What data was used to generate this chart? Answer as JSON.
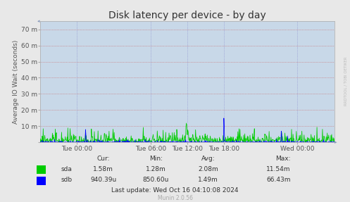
{
  "title": "Disk latency per device - by day",
  "ylabel": "Average IO Wait (seconds)",
  "background_color": "#e8e8e8",
  "plot_bg_color": "#c8d8e8",
  "x_tick_labels": [
    "Tue 00:00",
    "Tue 06:00",
    "Tue 12:00",
    "Tue 18:00",
    "Wed 00:00"
  ],
  "x_tick_positions": [
    0.125,
    0.375,
    0.5,
    0.625,
    0.875
  ],
  "y_ticks": [
    0,
    10,
    20,
    30,
    40,
    50,
    60,
    70
  ],
  "y_tick_labels": [
    "",
    "10 m",
    "20 m",
    "30 m",
    "40 m",
    "50 m",
    "60 m",
    "70 m"
  ],
  "ylim": [
    0,
    75
  ],
  "n_points": 800,
  "sda_color": "#00cc00",
  "sdb_color": "#0000ff",
  "legend_labels": [
    "sda",
    "sdb"
  ],
  "cur_label": "Cur:",
  "min_label": "Min:",
  "avg_label": "Avg:",
  "max_label": "Max:",
  "sda_cur": "1.58m",
  "sda_min": "1.28m",
  "sda_avg": "2.08m",
  "sda_max": "11.54m",
  "sdb_cur": "940.39u",
  "sdb_min": "850.60u",
  "sdb_avg": "1.49m",
  "sdb_max": "66.43m",
  "last_update": "Last update: Wed Oct 16 04:10:08 2024",
  "munin_version": "Munin 2.0.56",
  "watermark": "RRDTOOL / TOBI OETIKER",
  "title_fontsize": 10,
  "axis_fontsize": 6.5,
  "stats_fontsize": 6.5,
  "small_fontsize": 5.5
}
